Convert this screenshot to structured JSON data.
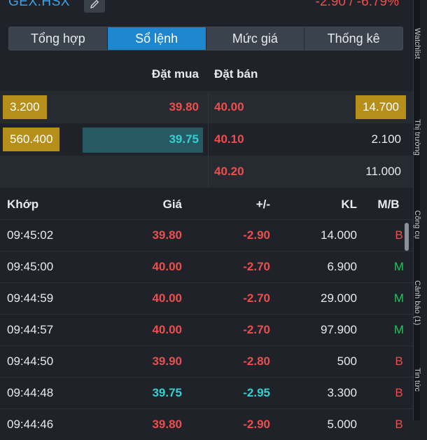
{
  "header": {
    "ticker": "GEX.HSX",
    "change": "-2.90 / -6.79%",
    "edit_icon": "pencil-icon"
  },
  "tabs": [
    {
      "label": "Tổng hợp",
      "active": false
    },
    {
      "label": "Sổ lệnh",
      "active": true
    },
    {
      "label": "Mức giá",
      "active": false
    },
    {
      "label": "Thống kê",
      "active": false
    }
  ],
  "side_tabs": [
    "Watchlist",
    "Thị trường",
    "Công cụ",
    "Cảnh báo (1)",
    "Tin tức"
  ],
  "orderbook": {
    "bid_header": "Đặt mua",
    "ask_header": "Đặt bán",
    "rows": [
      {
        "bid_vol": "3.200",
        "bid_price": "39.80",
        "ask_price": "40.00",
        "ask_vol": "14.700"
      },
      {
        "bid_vol": "560.400",
        "bid_price": "39.75",
        "ask_price": "40.10",
        "ask_vol": "2.100"
      },
      {
        "bid_vol": "",
        "bid_price": "",
        "ask_price": "40.20",
        "ask_vol": "11.000"
      }
    ]
  },
  "matches": {
    "headers": {
      "time": "Khớp",
      "price": "Giá",
      "change": "+/-",
      "volume": "KL",
      "side": "M/B"
    },
    "rows": [
      {
        "time": "09:45:02",
        "price": "39.80",
        "change": "-2.90",
        "volume": "14.000",
        "side": "B"
      },
      {
        "time": "09:45:00",
        "price": "40.00",
        "change": "-2.70",
        "volume": "6.900",
        "side": "M"
      },
      {
        "time": "09:44:59",
        "price": "40.00",
        "change": "-2.70",
        "volume": "29.000",
        "side": "M"
      },
      {
        "time": "09:44:57",
        "price": "40.00",
        "change": "-2.70",
        "volume": "97.900",
        "side": "M"
      },
      {
        "time": "09:44:50",
        "price": "39.90",
        "change": "-2.80",
        "volume": "500",
        "side": "B"
      },
      {
        "time": "09:44:48",
        "price": "39.75",
        "change": "-2.95",
        "volume": "3.300",
        "side": "B"
      },
      {
        "time": "09:44:46",
        "price": "39.80",
        "change": "-2.90",
        "volume": "5.000",
        "side": "B"
      }
    ]
  },
  "colors": {
    "down": "#ef4d4d",
    "floor_near": "#33d1d1",
    "buy": "#21c25a",
    "accent": "#1e86cf",
    "vol_box": "#b68e1a"
  }
}
